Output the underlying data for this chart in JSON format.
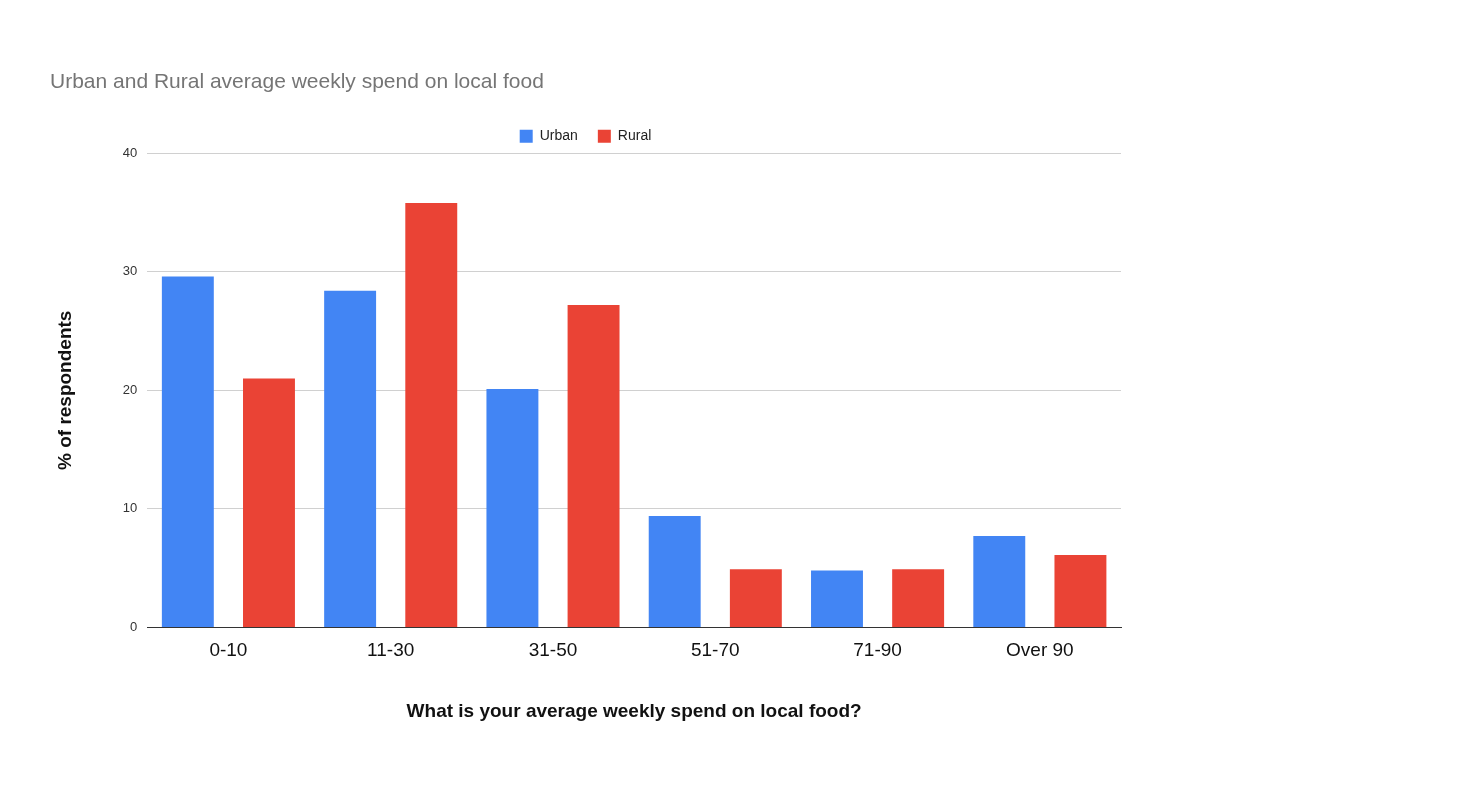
{
  "chart_data": {
    "type": "bar",
    "title": "Urban and Rural average weekly spend on local food",
    "xlabel": "What is your average weekly spend on local food?",
    "ylabel": "% of respondents",
    "categories": [
      "0-10",
      "11-30",
      "31-50",
      "51-70",
      "71-90",
      "Over 90"
    ],
    "series": [
      {
        "name": "Urban",
        "color": "#4285f4",
        "values": [
          29.6,
          28.4,
          20.1,
          9.4,
          4.8,
          7.7
        ]
      },
      {
        "name": "Rural",
        "color": "#ea4335",
        "values": [
          21.0,
          35.8,
          27.2,
          4.9,
          4.9,
          6.1
        ]
      }
    ],
    "ylim": [
      0,
      40
    ],
    "yticks": [
      0,
      10,
      20,
      30,
      40
    ],
    "grid": "y",
    "legend": "top"
  }
}
